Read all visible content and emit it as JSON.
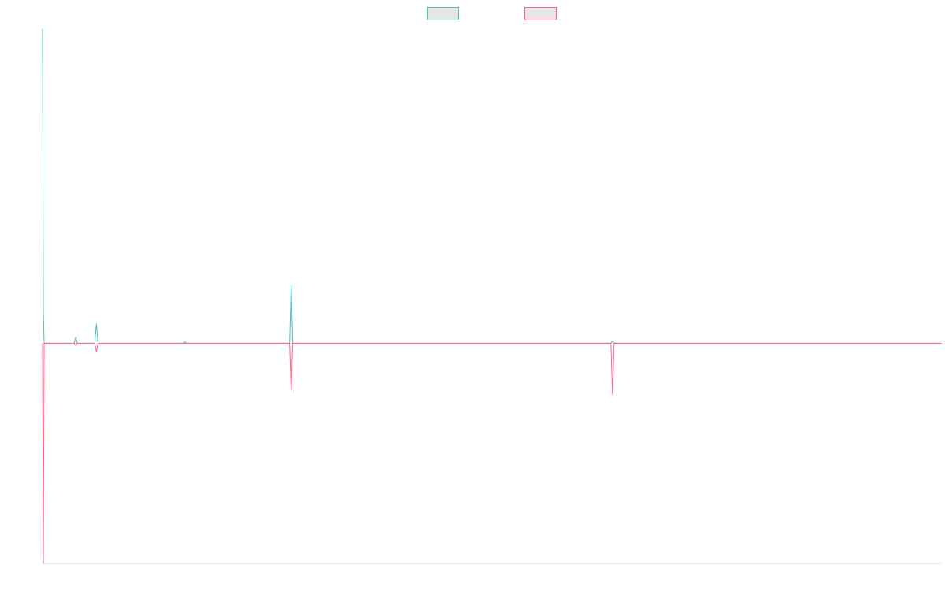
{
  "chart_data": {
    "type": "line",
    "title": "",
    "xlabel": "",
    "ylabel": "",
    "grid": false,
    "legend": "top-center",
    "xlim": [
      0,
      1135
    ],
    "ylim": [
      -280,
      400
    ],
    "x": [
      0,
      1,
      2,
      3,
      4,
      5,
      40,
      42,
      44,
      66,
      68,
      70,
      178,
      180,
      182,
      312,
      314,
      316,
      718,
      720,
      722,
      1135
    ],
    "series": [
      {
        "color": "#4bc0c0",
        "fill": "#e6e6e6",
        "values": [
          400,
          40,
          0,
          0,
          0,
          0,
          0,
          8,
          0,
          0,
          25,
          0,
          0,
          2,
          0,
          0,
          75,
          0,
          0,
          3,
          0,
          0
        ]
      },
      {
        "color": "#ff6384",
        "fill": "#e6e6e6",
        "values": [
          0,
          -280,
          0,
          0,
          0,
          0,
          0,
          -3,
          0,
          0,
          -11,
          0,
          0,
          0,
          0,
          0,
          -62,
          0,
          0,
          -65,
          0,
          0
        ]
      }
    ]
  }
}
